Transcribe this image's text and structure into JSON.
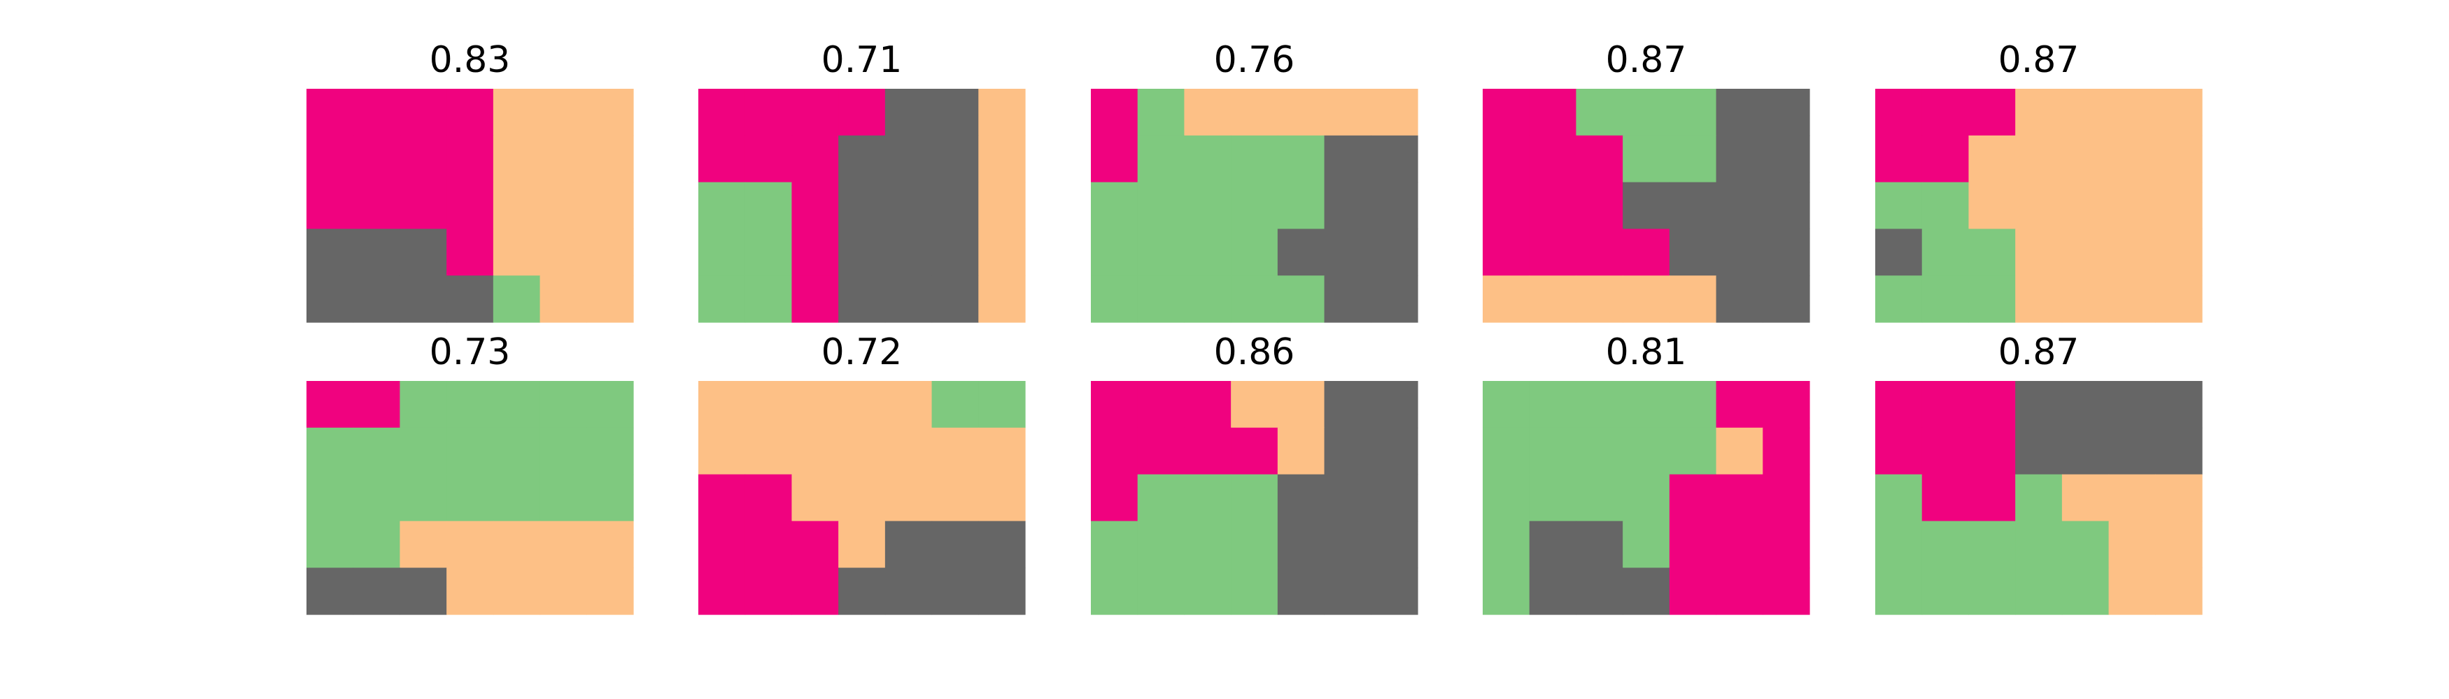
{
  "colors": {
    "0": "#f0027f",
    "1": "#7fc97f",
    "2": "#fdc086",
    "3": "#666666"
  },
  "chart_data": {
    "type": "heatmap",
    "cols": 7,
    "rows": 5,
    "panels": [
      {
        "title": "0.83",
        "grid": [
          [
            0,
            0,
            0,
            0,
            2,
            2,
            2
          ],
          [
            0,
            0,
            0,
            0,
            2,
            2,
            2
          ],
          [
            0,
            0,
            0,
            0,
            2,
            2,
            2
          ],
          [
            3,
            3,
            3,
            0,
            2,
            2,
            2
          ],
          [
            3,
            3,
            3,
            3,
            1,
            2,
            2
          ]
        ]
      },
      {
        "title": "0.71",
        "grid": [
          [
            0,
            0,
            0,
            0,
            3,
            3,
            2
          ],
          [
            0,
            0,
            0,
            3,
            3,
            3,
            2
          ],
          [
            1,
            1,
            0,
            3,
            3,
            3,
            2
          ],
          [
            1,
            1,
            0,
            3,
            3,
            3,
            2
          ],
          [
            1,
            1,
            0,
            3,
            3,
            3,
            2
          ]
        ]
      },
      {
        "title": "0.76",
        "grid": [
          [
            0,
            1,
            2,
            2,
            2,
            2,
            2
          ],
          [
            0,
            1,
            1,
            1,
            1,
            3,
            3
          ],
          [
            1,
            1,
            1,
            1,
            1,
            3,
            3
          ],
          [
            1,
            1,
            1,
            1,
            3,
            3,
            3
          ],
          [
            1,
            1,
            1,
            1,
            1,
            3,
            3
          ]
        ]
      },
      {
        "title": "0.87",
        "grid": [
          [
            0,
            0,
            1,
            1,
            1,
            3,
            3
          ],
          [
            0,
            0,
            0,
            1,
            1,
            3,
            3
          ],
          [
            0,
            0,
            0,
            3,
            3,
            3,
            3
          ],
          [
            0,
            0,
            0,
            0,
            3,
            3,
            3
          ],
          [
            2,
            2,
            2,
            2,
            2,
            3,
            3
          ]
        ]
      },
      {
        "title": "0.87",
        "grid": [
          [
            0,
            0,
            0,
            2,
            2,
            2,
            2
          ],
          [
            0,
            0,
            2,
            2,
            2,
            2,
            2
          ],
          [
            1,
            1,
            2,
            2,
            2,
            2,
            2
          ],
          [
            3,
            1,
            1,
            2,
            2,
            2,
            2
          ],
          [
            1,
            1,
            1,
            2,
            2,
            2,
            2
          ]
        ]
      },
      {
        "title": "0.73",
        "grid": [
          [
            0,
            0,
            1,
            1,
            1,
            1,
            1
          ],
          [
            1,
            1,
            1,
            1,
            1,
            1,
            1
          ],
          [
            1,
            1,
            1,
            1,
            1,
            1,
            1
          ],
          [
            1,
            1,
            2,
            2,
            2,
            2,
            2
          ],
          [
            3,
            3,
            3,
            2,
            2,
            2,
            2
          ]
        ]
      },
      {
        "title": "0.72",
        "grid": [
          [
            2,
            2,
            2,
            2,
            2,
            1,
            1
          ],
          [
            2,
            2,
            2,
            2,
            2,
            2,
            2
          ],
          [
            0,
            0,
            2,
            2,
            2,
            2,
            2
          ],
          [
            0,
            0,
            0,
            2,
            3,
            3,
            3
          ],
          [
            0,
            0,
            0,
            3,
            3,
            3,
            3
          ]
        ]
      },
      {
        "title": "0.86",
        "grid": [
          [
            0,
            0,
            0,
            2,
            2,
            3,
            3
          ],
          [
            0,
            0,
            0,
            0,
            2,
            3,
            3
          ],
          [
            0,
            1,
            1,
            1,
            3,
            3,
            3
          ],
          [
            1,
            1,
            1,
            1,
            3,
            3,
            3
          ],
          [
            1,
            1,
            1,
            1,
            3,
            3,
            3
          ]
        ]
      },
      {
        "title": "0.81",
        "grid": [
          [
            1,
            1,
            1,
            1,
            1,
            0,
            0
          ],
          [
            1,
            1,
            1,
            1,
            1,
            2,
            0
          ],
          [
            1,
            1,
            1,
            1,
            0,
            0,
            0
          ],
          [
            1,
            3,
            3,
            1,
            0,
            0,
            0
          ],
          [
            1,
            3,
            3,
            3,
            0,
            0,
            0
          ]
        ]
      },
      {
        "title": "0.87",
        "grid": [
          [
            0,
            0,
            0,
            3,
            3,
            3,
            3
          ],
          [
            0,
            0,
            0,
            3,
            3,
            3,
            3
          ],
          [
            1,
            0,
            0,
            1,
            2,
            2,
            2
          ],
          [
            1,
            1,
            1,
            1,
            1,
            2,
            2
          ],
          [
            1,
            1,
            1,
            1,
            1,
            2,
            2
          ]
        ]
      }
    ]
  }
}
